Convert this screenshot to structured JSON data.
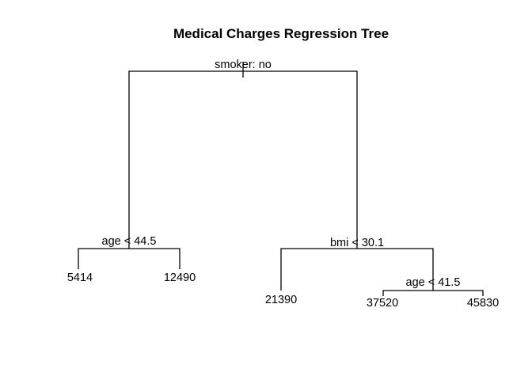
{
  "title": "Medical Charges Regression Tree",
  "tree": {
    "root": {
      "split": "smoker: no"
    },
    "left_split": {
      "split": "age < 44.5"
    },
    "right_split": {
      "split": "bmi < 30.1"
    },
    "right_right_split": {
      "split": "age < 41.5"
    },
    "leaves": {
      "ll": "5414",
      "lr": "12490",
      "rl": "21390",
      "rrl": "37520",
      "rrr": "45830"
    }
  }
}
